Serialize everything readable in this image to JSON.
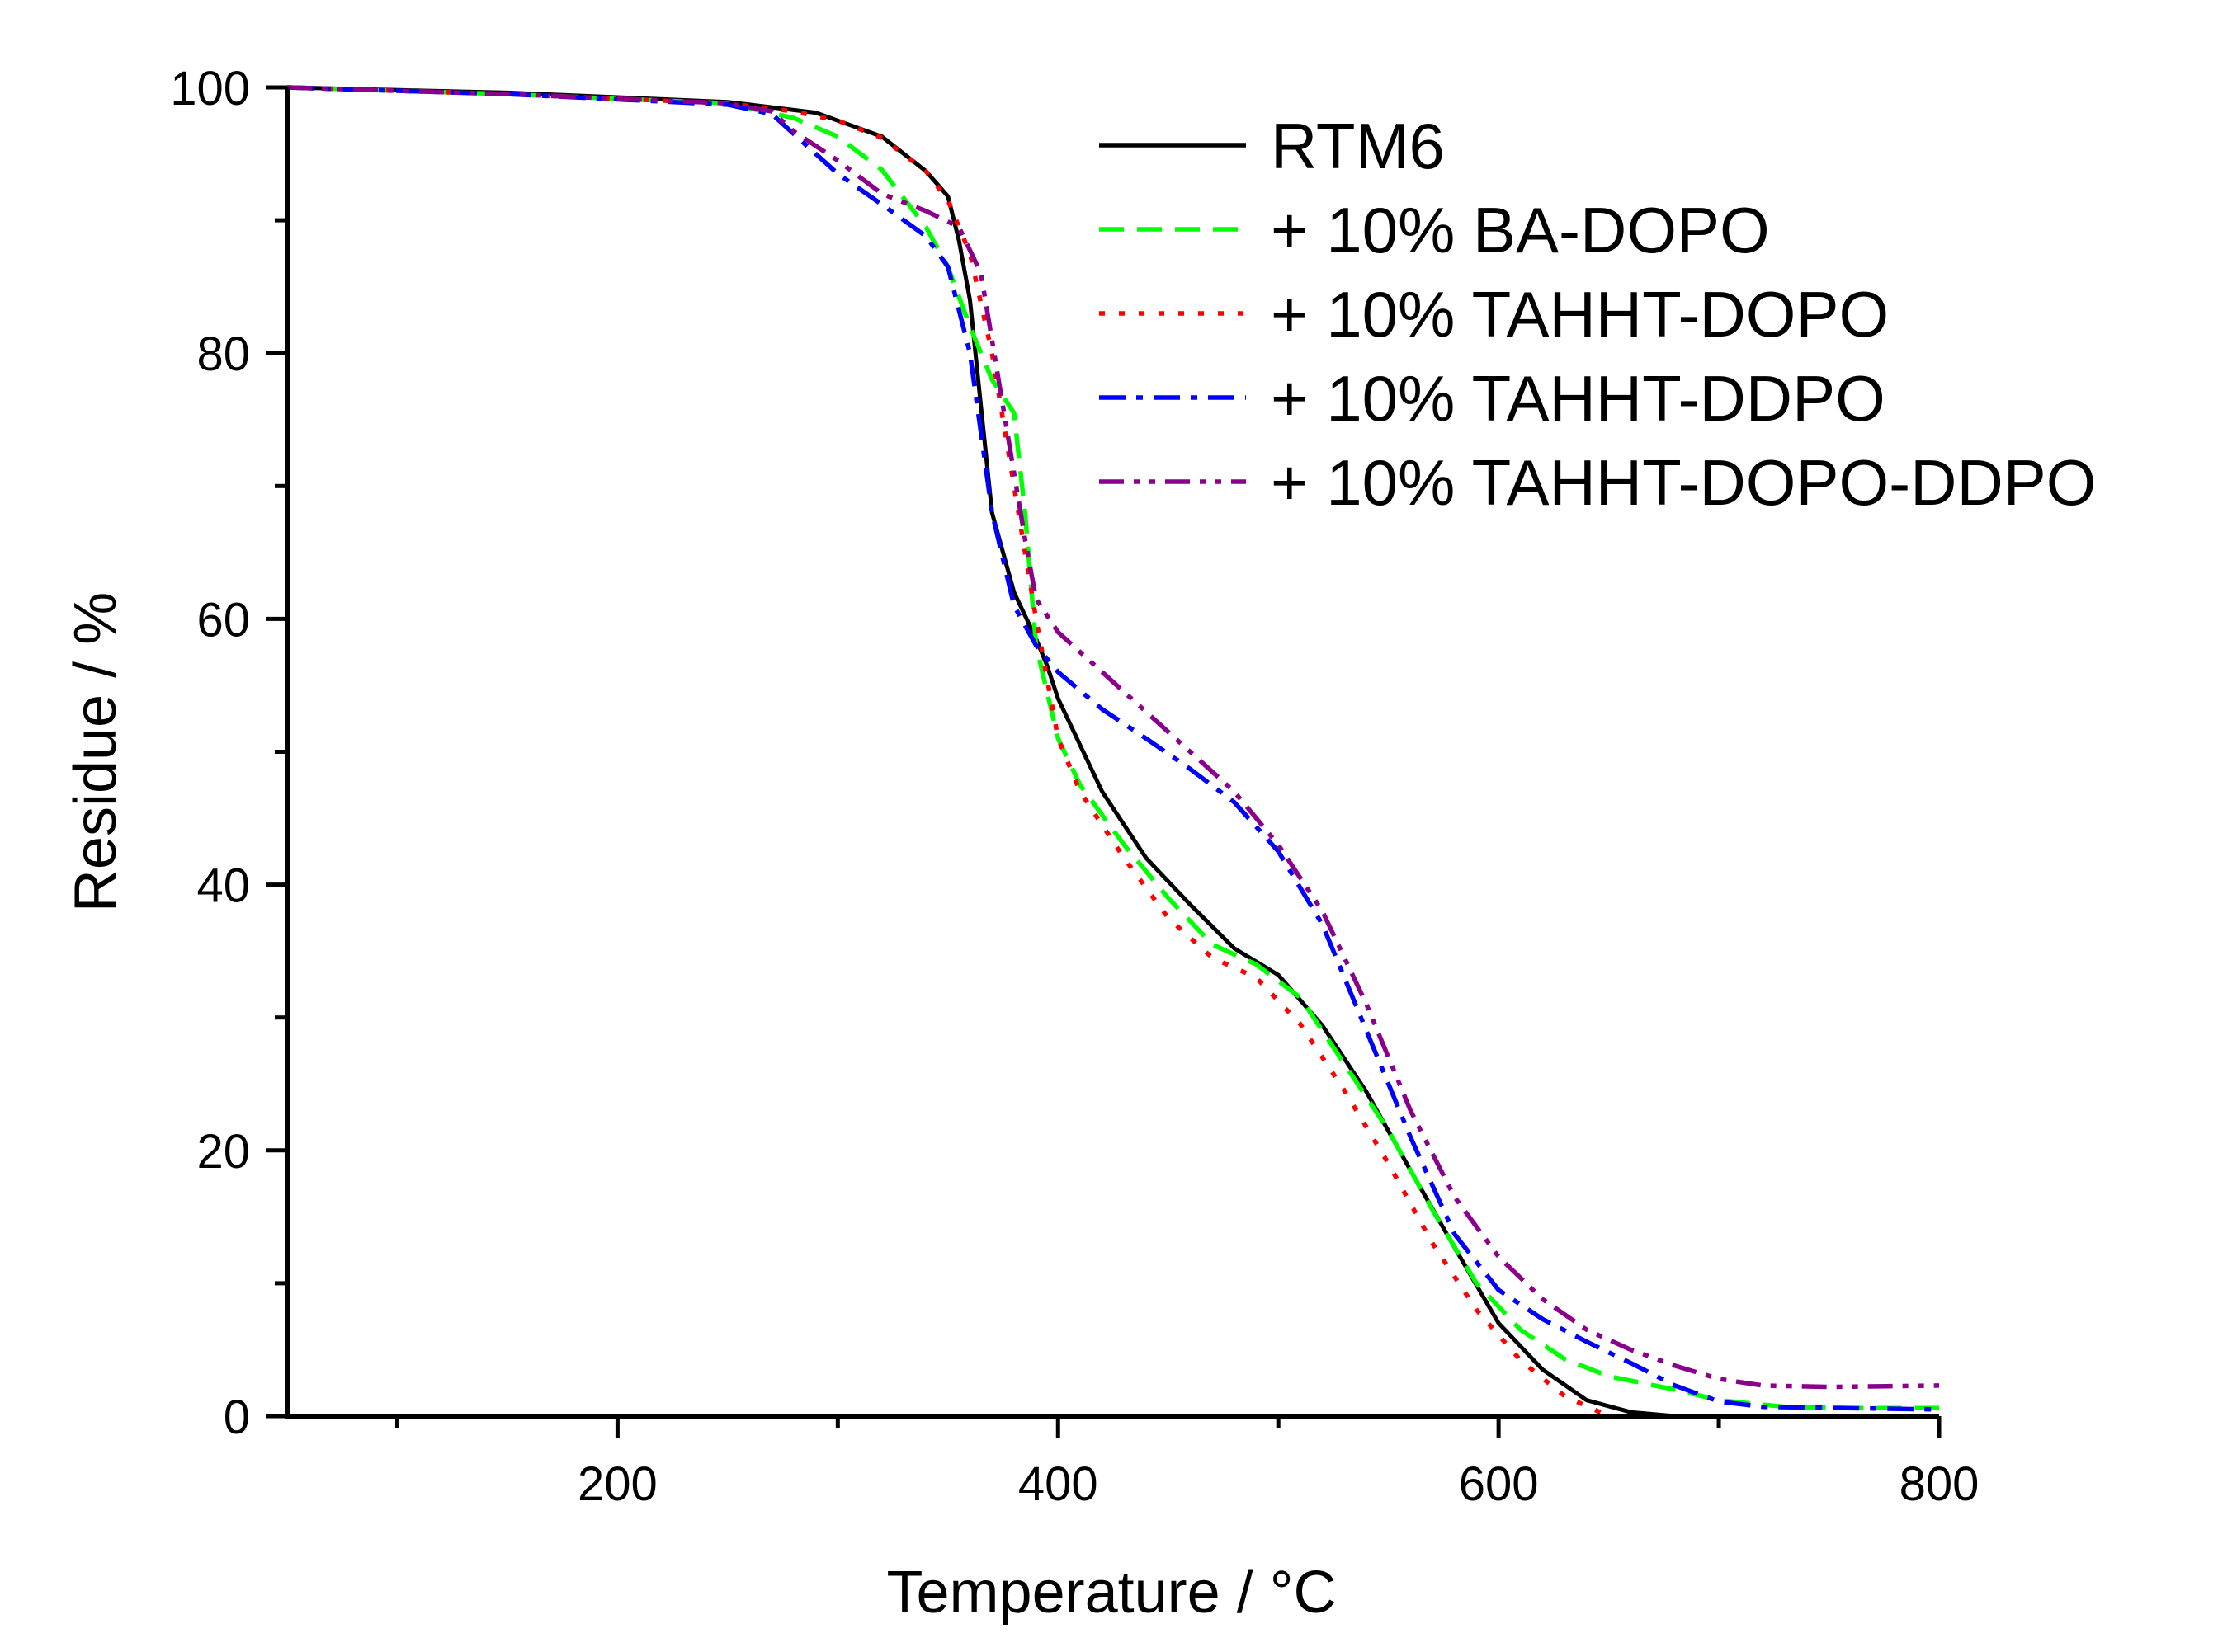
{
  "chart_data": {
    "type": "line",
    "title": "",
    "xlabel": "Temperature / °C",
    "ylabel": "Residue / %",
    "xlim": [
      50,
      800
    ],
    "ylim": [
      0,
      100
    ],
    "x_ticks": [
      200,
      400,
      600,
      800
    ],
    "x_minor_ticks": [
      100,
      300,
      500,
      700
    ],
    "y_ticks": [
      0,
      20,
      40,
      60,
      80,
      100
    ],
    "y_minor_ticks": [
      10,
      30,
      50,
      70,
      90
    ],
    "grid": false,
    "legend_position": "top-right",
    "series": [
      {
        "name": "RTM6",
        "color": "#000000",
        "dash": "solid",
        "points": [
          [
            50,
            100
          ],
          [
            150,
            99.6
          ],
          [
            250,
            98.9
          ],
          [
            290,
            98.1
          ],
          [
            320,
            96.3
          ],
          [
            340,
            93.7
          ],
          [
            350,
            91.8
          ],
          [
            355,
            88.5
          ],
          [
            360,
            84
          ],
          [
            365,
            76
          ],
          [
            370,
            68
          ],
          [
            380,
            62
          ],
          [
            390,
            58.5
          ],
          [
            395,
            56.5
          ],
          [
            400,
            54
          ],
          [
            410,
            50.5
          ],
          [
            420,
            47
          ],
          [
            430,
            44.5
          ],
          [
            440,
            42
          ],
          [
            460,
            38.5
          ],
          [
            480,
            35.2
          ],
          [
            500,
            33.2
          ],
          [
            520,
            29.4
          ],
          [
            540,
            24.4
          ],
          [
            560,
            18.5
          ],
          [
            580,
            12.7
          ],
          [
            600,
            7
          ],
          [
            620,
            3.5
          ],
          [
            640,
            1.2
          ],
          [
            660,
            0.3
          ],
          [
            680,
            0
          ],
          [
            800,
            0
          ]
        ]
      },
      {
        "name": "+ 10% BA-DOPO",
        "color": "#00ff00",
        "dash": "dashed",
        "points": [
          [
            50,
            100
          ],
          [
            150,
            99.5
          ],
          [
            250,
            98.8
          ],
          [
            280,
            97.7
          ],
          [
            300,
            96.3
          ],
          [
            320,
            93.8
          ],
          [
            340,
            89.5
          ],
          [
            350,
            86.5
          ],
          [
            360,
            82
          ],
          [
            370,
            78
          ],
          [
            380,
            75.5
          ],
          [
            385,
            68
          ],
          [
            390,
            58
          ],
          [
            400,
            51
          ],
          [
            410,
            47.5
          ],
          [
            430,
            43
          ],
          [
            450,
            39
          ],
          [
            470,
            35.5
          ],
          [
            490,
            34
          ],
          [
            510,
            31.5
          ],
          [
            530,
            26.5
          ],
          [
            550,
            21.5
          ],
          [
            570,
            15.5
          ],
          [
            590,
            10
          ],
          [
            610,
            6.5
          ],
          [
            630,
            4.3
          ],
          [
            650,
            3
          ],
          [
            680,
            2
          ],
          [
            700,
            1.2
          ],
          [
            730,
            0.7
          ],
          [
            760,
            0.6
          ],
          [
            800,
            0.6
          ]
        ]
      },
      {
        "name": "+ 10% TAHHT-DOPO",
        "color": "#ff0000",
        "dash": "dotted",
        "points": [
          [
            50,
            100
          ],
          [
            150,
            99.5
          ],
          [
            250,
            98.8
          ],
          [
            280,
            98.2
          ],
          [
            300,
            97.5
          ],
          [
            320,
            96.2
          ],
          [
            340,
            93.7
          ],
          [
            350,
            91.5
          ],
          [
            360,
            87.5
          ],
          [
            370,
            80
          ],
          [
            380,
            70
          ],
          [
            390,
            60
          ],
          [
            400,
            51
          ],
          [
            410,
            47
          ],
          [
            430,
            42
          ],
          [
            450,
            37.5
          ],
          [
            470,
            34.5
          ],
          [
            490,
            33
          ],
          [
            510,
            29.5
          ],
          [
            530,
            24.5
          ],
          [
            550,
            19
          ],
          [
            570,
            13
          ],
          [
            590,
            8
          ],
          [
            610,
            4.2
          ],
          [
            630,
            1.5
          ],
          [
            650,
            0
          ],
          [
            800,
            0
          ]
        ]
      },
      {
        "name": "+ 10% TAHHT-DDPO",
        "color": "#0000ff",
        "dash": "dashdot",
        "points": [
          [
            50,
            100
          ],
          [
            150,
            99.5
          ],
          [
            250,
            98.7
          ],
          [
            270,
            98
          ],
          [
            280,
            96.5
          ],
          [
            300,
            93.5
          ],
          [
            320,
            91.2
          ],
          [
            340,
            88.8
          ],
          [
            350,
            86.5
          ],
          [
            360,
            80
          ],
          [
            370,
            68
          ],
          [
            380,
            61
          ],
          [
            390,
            58
          ],
          [
            400,
            56
          ],
          [
            420,
            53.2
          ],
          [
            440,
            51
          ],
          [
            460,
            48.7
          ],
          [
            480,
            46.2
          ],
          [
            500,
            42.5
          ],
          [
            520,
            37
          ],
          [
            540,
            29
          ],
          [
            560,
            21
          ],
          [
            580,
            13.7
          ],
          [
            600,
            9.5
          ],
          [
            620,
            7.3
          ],
          [
            640,
            5.6
          ],
          [
            660,
            4
          ],
          [
            680,
            2.3
          ],
          [
            700,
            1.1
          ],
          [
            720,
            0.7
          ],
          [
            800,
            0.5
          ]
        ]
      },
      {
        "name": "+ 10% TAHHT-DOPO-DDPO",
        "color": "#8b008b",
        "dash": "dashdotdot",
        "points": [
          [
            50,
            100
          ],
          [
            150,
            99.5
          ],
          [
            250,
            98.8
          ],
          [
            270,
            98.2
          ],
          [
            280,
            96.7
          ],
          [
            300,
            94.5
          ],
          [
            320,
            92
          ],
          [
            340,
            90.7
          ],
          [
            355,
            89.5
          ],
          [
            365,
            86
          ],
          [
            375,
            76
          ],
          [
            385,
            66
          ],
          [
            390,
            61.5
          ],
          [
            400,
            59
          ],
          [
            420,
            56
          ],
          [
            440,
            53
          ],
          [
            460,
            50
          ],
          [
            480,
            47
          ],
          [
            500,
            43
          ],
          [
            520,
            38
          ],
          [
            540,
            31
          ],
          [
            560,
            23
          ],
          [
            580,
            16.5
          ],
          [
            600,
            12
          ],
          [
            620,
            8.8
          ],
          [
            640,
            6.5
          ],
          [
            660,
            5
          ],
          [
            680,
            3.8
          ],
          [
            700,
            2.8
          ],
          [
            720,
            2.3
          ],
          [
            750,
            2.2
          ],
          [
            800,
            2.3
          ]
        ]
      }
    ]
  }
}
